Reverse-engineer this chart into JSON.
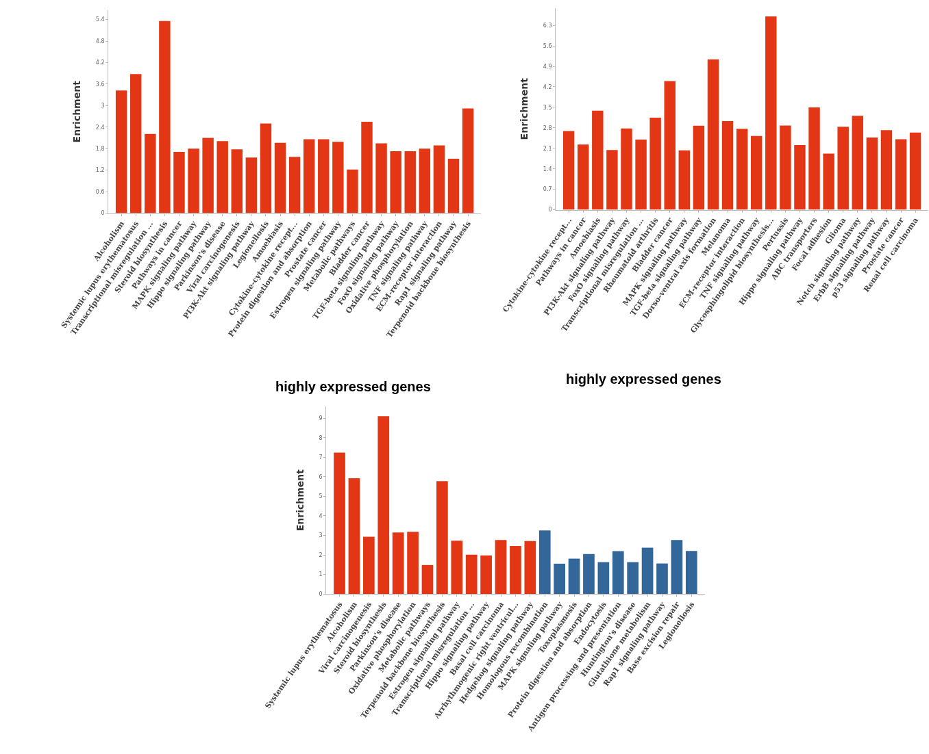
{
  "chart_data": [
    {
      "type": "bar",
      "ylabel": "Enrichment",
      "color": "#e33614",
      "grid": false,
      "ylim": [
        0,
        5.66
      ],
      "yticks": [
        0,
        0.6,
        1.2,
        1.8,
        2.4,
        3,
        3.6,
        4.2,
        4.8,
        5.4
      ],
      "categories": [
        "Alcoholism",
        "Systemic lupus erythematosus",
        "Transcriptional misregulation ...",
        "Steroid biosynthesis",
        "Pathways in cancer",
        "MAPK signaling pathway",
        "Hippo signaling pathway",
        "Parkinson's disease",
        "Viral carcinogenesis",
        "PI3K-Akt signaling pathway",
        "Legionellosis",
        "Amoebiasis",
        "Cytokine-cytokine recept...",
        "Protein digestion and absorption",
        "Prostate cancer",
        "Estrogen signaling pathway",
        "Metabolic pathways",
        "Bladder cancer",
        "TGF-beta signaling pathway",
        "FoxO signaling pathway",
        "Oxidative phosphorylation",
        "TNF signaling pathway",
        "ECM-receptor interaction",
        "Rap1 signaling pathway",
        "Terpenoid backbone biosynthesis"
      ],
      "values": [
        3.42,
        3.88,
        2.21,
        5.36,
        1.71,
        1.8,
        2.1,
        2.01,
        1.78,
        1.55,
        2.5,
        1.96,
        1.57,
        2.06,
        2.06,
        1.99,
        1.22,
        2.55,
        1.95,
        1.73,
        1.73,
        1.8,
        1.89,
        1.52,
        2.92
      ],
      "annotations": [
        "highly expressed genes"
      ]
    },
    {
      "type": "bar",
      "ylabel": "Enrichment",
      "color": "#e33614",
      "grid": false,
      "ylim": [
        0,
        6.89
      ],
      "yticks": [
        0,
        0.7,
        1.4,
        2.1,
        2.8,
        3.5,
        4.2,
        4.9,
        5.6,
        6.3
      ],
      "categories": [
        "Cytokine-cytokine recept...",
        "Pathways in cancer",
        "Amoebiasis",
        "PI3K-Akt signaling pathway",
        "FoxO signaling pathway",
        "Transcriptional misregulation ...",
        "Rheumatoid arthritis",
        "Bladder cancer",
        "MAPK signaling pathway",
        "TGF-beta signaling pathway",
        "Dorso-ventral axis formation",
        "Melanoma",
        "ECM-receptor interaction",
        "TNF signaling pathway",
        "Glycosphingolipid biosynthesis...",
        "Pertussis",
        "Hippo signaling pathway",
        "ABC transporters",
        "Focal adhesion",
        "Glioma",
        "Notch signaling pathway",
        "ErbB signaling pathway",
        "p53 signaling pathway",
        "Prostate cancer",
        "Renal cell carcinoma"
      ],
      "values": [
        2.69,
        2.23,
        3.39,
        2.04,
        2.78,
        2.4,
        3.15,
        4.4,
        2.03,
        2.87,
        5.14,
        3.03,
        2.77,
        2.52,
        6.61,
        2.88,
        2.21,
        3.5,
        1.92,
        2.84,
        3.21,
        2.47,
        2.72,
        2.41,
        2.64
      ],
      "annotations": [
        "highly expressed genes"
      ]
    },
    {
      "type": "bar",
      "ylabel": "Enrichment",
      "grid": false,
      "ylim": [
        0,
        9.6
      ],
      "yticks": [
        0,
        1,
        2,
        3,
        4,
        5,
        6,
        7,
        8,
        9
      ],
      "categories": [
        "Systemic lupus erythematosus",
        "Alcoholism",
        "Viral carcinogenesis",
        "Steroid biosynthesis",
        "Parkinson's disease",
        "Oxidative phosphorylation",
        "Metabolic pathways",
        "Terpenoid backbone biosynthesis",
        "Estrogen signaling pathway",
        "Transcriptional misregulation ...",
        "Hippo signaling pathway",
        "Basal cell carcinoma",
        "Arrhythmogenic right ventricul...",
        "Hedgehog signaling pathway",
        "Homologous recombination",
        "MAPK signaling pathway",
        "Toxoplasmosis",
        "Protein digestion and absorption",
        "Endocytosis",
        "Antigen processing and presentation",
        "Huntington's disease",
        "Glutathione metabolism",
        "Rap1 signaling pathway",
        "Base excision repair",
        "Legionellosis"
      ],
      "values": [
        7.24,
        5.93,
        2.93,
        9.11,
        3.15,
        3.18,
        1.48,
        5.78,
        2.73,
        2.01,
        1.97,
        2.76,
        2.46,
        2.71,
        3.25,
        1.55,
        1.81,
        2.04,
        1.63,
        2.19,
        1.63,
        2.37,
        1.56,
        2.76,
        2.2
      ],
      "colors": [
        "#e33614",
        "#e33614",
        "#e33614",
        "#e33614",
        "#e33614",
        "#e33614",
        "#e33614",
        "#e33614",
        "#e33614",
        "#e33614",
        "#e33614",
        "#e33614",
        "#e33614",
        "#e33614",
        "#336699",
        "#336699",
        "#336699",
        "#336699",
        "#336699",
        "#336699",
        "#336699",
        "#336699",
        "#336699",
        "#336699",
        "#336699"
      ]
    }
  ]
}
